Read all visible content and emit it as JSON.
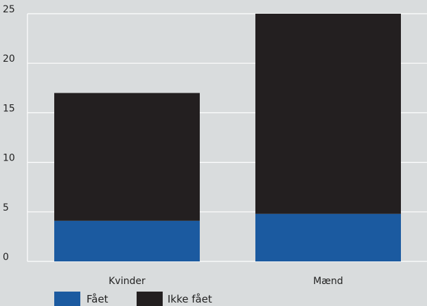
{
  "chart_data": {
    "type": "bar",
    "stacked": true,
    "categories": [
      "Kvinder",
      "Mænd"
    ],
    "series": [
      {
        "name": "Fået",
        "values": [
          4.1,
          4.8
        ],
        "color": "#1b5aa0"
      },
      {
        "name": "Ikke fået",
        "values": [
          12.9,
          20.2
        ],
        "color": "#231f20"
      }
    ],
    "ylim": [
      0,
      25
    ],
    "yticks": [
      "0",
      "5",
      "10",
      "15",
      "20",
      "25"
    ],
    "grid": true,
    "legend_position": "bottom-left",
    "title": "",
    "xlabel": "",
    "ylabel": ""
  }
}
